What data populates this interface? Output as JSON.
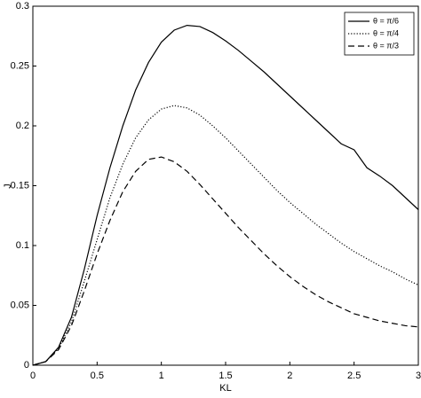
{
  "chart_data": {
    "type": "line",
    "xlabel": "KL",
    "ylabel": "J",
    "x": [
      0,
      0.1,
      0.2,
      0.3,
      0.4,
      0.5,
      0.6,
      0.7,
      0.8,
      0.9,
      1.0,
      1.1,
      1.2,
      1.3,
      1.4,
      1.5,
      1.6,
      1.7,
      1.8,
      1.9,
      2.0,
      2.1,
      2.2,
      2.3,
      2.4,
      2.5,
      2.6,
      2.7,
      2.8,
      2.9,
      3.0
    ],
    "series": [
      {
        "name": "θ = π/6",
        "color": "#000000",
        "style": "solid",
        "values": [
          0,
          0.003,
          0.015,
          0.04,
          0.08,
          0.125,
          0.165,
          0.2,
          0.23,
          0.253,
          0.27,
          0.28,
          0.284,
          0.283,
          0.278,
          0.271,
          0.263,
          0.254,
          0.245,
          0.235,
          0.225,
          0.215,
          0.205,
          0.195,
          0.185,
          0.18,
          0.165,
          0.158,
          0.15,
          0.14,
          0.13
        ]
      },
      {
        "name": "θ = π/4",
        "color": "#000000",
        "style": "dotted",
        "values": [
          0,
          0.003,
          0.014,
          0.036,
          0.07,
          0.105,
          0.14,
          0.168,
          0.19,
          0.205,
          0.214,
          0.217,
          0.215,
          0.209,
          0.2,
          0.19,
          0.179,
          0.168,
          0.157,
          0.146,
          0.136,
          0.127,
          0.118,
          0.11,
          0.102,
          0.095,
          0.089,
          0.083,
          0.078,
          0.072,
          0.067
        ]
      },
      {
        "name": "θ = π/3",
        "color": "#000000",
        "style": "dashed",
        "values": [
          0,
          0.003,
          0.013,
          0.033,
          0.062,
          0.093,
          0.121,
          0.145,
          0.162,
          0.172,
          0.174,
          0.17,
          0.162,
          0.151,
          0.139,
          0.127,
          0.115,
          0.104,
          0.093,
          0.083,
          0.074,
          0.066,
          0.059,
          0.053,
          0.048,
          0.043,
          0.04,
          0.037,
          0.035,
          0.033,
          0.032
        ]
      }
    ],
    "xlim": [
      0,
      3
    ],
    "xticks": [
      0,
      0.5,
      1,
      1.5,
      2,
      2.5,
      3
    ],
    "ylim": [
      0,
      0.3
    ],
    "yticks": [
      0,
      0.05,
      0.1,
      0.15,
      0.2,
      0.25,
      0.3
    ],
    "legend": "top-right"
  }
}
